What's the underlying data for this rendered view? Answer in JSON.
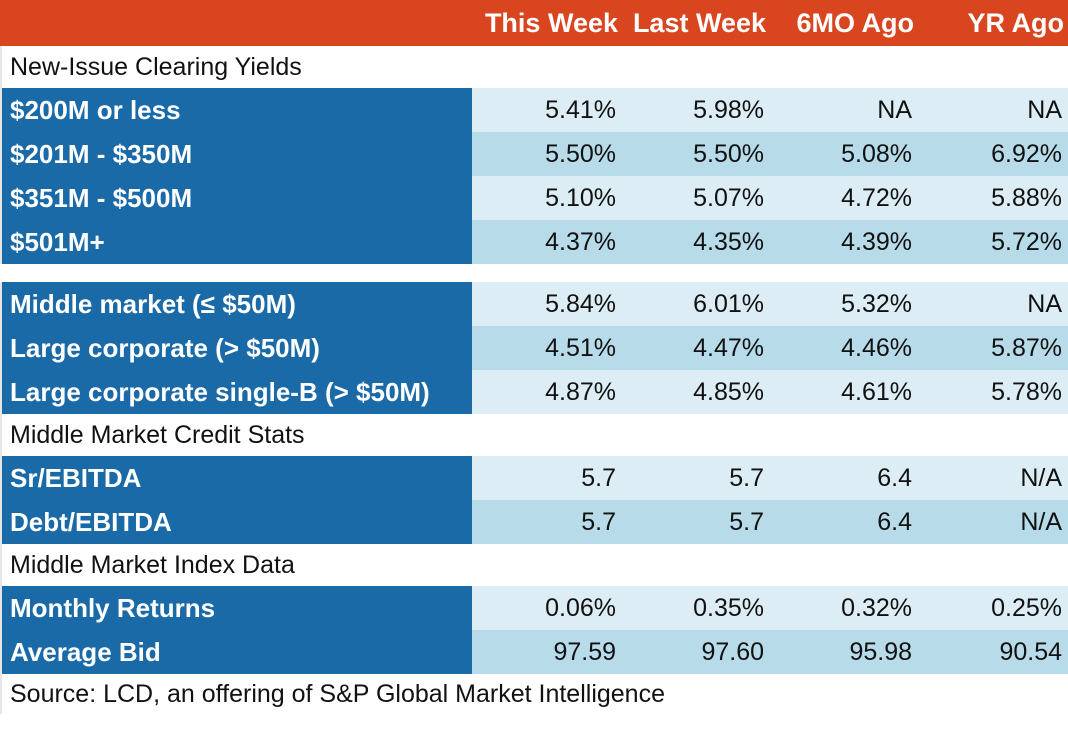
{
  "chart_data": {
    "type": "table",
    "columns": [
      "This Week",
      "Last Week",
      "6MO Ago",
      "YR Ago"
    ],
    "sections": [
      {
        "title": "New-Issue Clearing Yields",
        "rows": [
          {
            "label": "$200M or less",
            "values": [
              "5.41%",
              "5.98%",
              "NA",
              "NA"
            ]
          },
          {
            "label": "$201M - $350M",
            "values": [
              "5.50%",
              "5.50%",
              "5.08%",
              "6.92%"
            ]
          },
          {
            "label": "$351M - $500M",
            "values": [
              "5.10%",
              "5.07%",
              "4.72%",
              "5.88%"
            ]
          },
          {
            "label": "$501M+",
            "values": [
              "4.37%",
              "4.35%",
              "4.39%",
              "5.72%"
            ]
          }
        ]
      },
      {
        "title": "",
        "rows": [
          {
            "label": "Middle market (≤ $50M)",
            "values": [
              "5.84%",
              "6.01%",
              "5.32%",
              "NA"
            ]
          },
          {
            "label": "Large corporate (> $50M)",
            "values": [
              "4.51%",
              "4.47%",
              "4.46%",
              "5.87%"
            ]
          },
          {
            "label": "Large corporate single-B (> $50M)",
            "values": [
              "4.87%",
              "4.85%",
              "4.61%",
              "5.78%"
            ]
          }
        ]
      },
      {
        "title": "Middle Market Credit Stats",
        "rows": [
          {
            "label": "Sr/EBITDA",
            "values": [
              "5.7",
              "5.7",
              "6.4",
              "N/A"
            ]
          },
          {
            "label": "Debt/EBITDA",
            "values": [
              "5.7",
              "5.7",
              "6.4",
              "N/A"
            ]
          }
        ]
      },
      {
        "title": "Middle Market Index Data",
        "rows": [
          {
            "label": "Monthly Returns",
            "values": [
              "0.06%",
              "0.35%",
              "0.32%",
              "0.25%"
            ]
          },
          {
            "label": "Average Bid",
            "values": [
              "97.59",
              "97.60",
              "95.98",
              "90.54"
            ]
          }
        ]
      }
    ],
    "source": "Source: LCD, an offering of S&P Global Market Intelligence"
  },
  "colors": {
    "header_bg": "#d9451f",
    "label_bg": "#1b6aa8",
    "row_light": "#dcedf6",
    "row_dark": "#b7dbe9"
  }
}
